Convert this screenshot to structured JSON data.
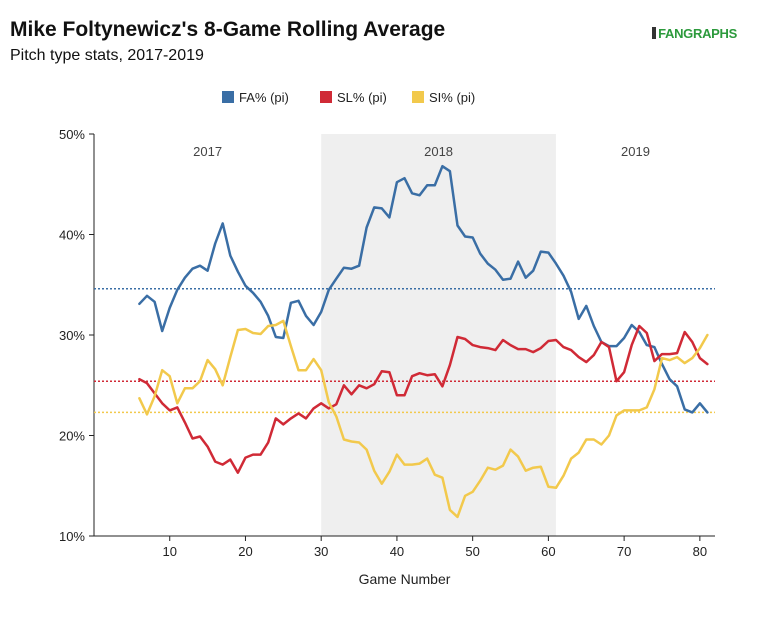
{
  "header": {
    "title": "Mike Foltynewicz's 8-Game Rolling Average",
    "subtitle": "Pitch type stats, 2017-2019",
    "logo_text": "FANGRAPHS"
  },
  "chart_data": {
    "type": "line",
    "title": "Mike Foltynewicz's 8-Game Rolling Average",
    "subtitle": "Pitch type stats, 2017-2019",
    "xlabel": "Game Number",
    "ylabel": "",
    "xlim": [
      0,
      82
    ],
    "ylim": [
      0.1,
      0.5
    ],
    "x_ticks": [
      10,
      20,
      30,
      40,
      50,
      60,
      70,
      80
    ],
    "y_ticks": [
      {
        "value": 0.1,
        "label": "10%"
      },
      {
        "value": 0.2,
        "label": "20%"
      },
      {
        "value": 0.3,
        "label": "30%"
      },
      {
        "value": 0.4,
        "label": "40%"
      },
      {
        "value": 0.5,
        "label": "50%"
      }
    ],
    "legend_position": "top-center",
    "grid": false,
    "seasons": [
      {
        "label": "2017",
        "start": 0,
        "end": 30,
        "shaded": false
      },
      {
        "label": "2018",
        "start": 30,
        "end": 61,
        "shaded": true
      },
      {
        "label": "2019",
        "start": 61,
        "end": 82,
        "shaded": false
      }
    ],
    "season_shade_color": "#efefef",
    "series": [
      {
        "name": "FA% (pi)",
        "color": "#3a6ea5",
        "average": 0.346,
        "x": [
          6,
          7,
          8,
          9,
          10,
          11,
          12,
          13,
          14,
          15,
          16,
          17,
          18,
          19,
          20,
          21,
          22,
          23,
          24,
          25,
          26,
          27,
          28,
          29,
          30,
          31,
          32,
          33,
          34,
          35,
          36,
          37,
          38,
          39,
          40,
          41,
          42,
          43,
          44,
          45,
          46,
          47,
          48,
          49,
          50,
          51,
          52,
          53,
          54,
          55,
          56,
          57,
          58,
          59,
          60,
          61,
          62,
          63,
          64,
          65,
          66,
          67,
          68,
          69,
          70,
          71,
          72,
          73,
          74,
          75,
          76,
          77,
          78,
          79,
          80,
          81
        ],
        "y": [
          0.331,
          0.339,
          0.333,
          0.304,
          0.327,
          0.345,
          0.357,
          0.366,
          0.369,
          0.364,
          0.391,
          0.411,
          0.379,
          0.363,
          0.349,
          0.342,
          0.333,
          0.319,
          0.298,
          0.297,
          0.332,
          0.334,
          0.319,
          0.31,
          0.323,
          0.345,
          0.356,
          0.367,
          0.366,
          0.369,
          0.407,
          0.427,
          0.426,
          0.417,
          0.452,
          0.456,
          0.441,
          0.439,
          0.449,
          0.449,
          0.468,
          0.463,
          0.409,
          0.398,
          0.397,
          0.381,
          0.371,
          0.365,
          0.355,
          0.356,
          0.373,
          0.357,
          0.364,
          0.383,
          0.382,
          0.371,
          0.359,
          0.343,
          0.316,
          0.329,
          0.309,
          0.293,
          0.289,
          0.289,
          0.297,
          0.31,
          0.303,
          0.29,
          0.288,
          0.271,
          0.256,
          0.249,
          0.226,
          0.223,
          0.232,
          0.223
        ]
      },
      {
        "name": "SL% (pi)",
        "color": "#d02a36",
        "average": 0.254,
        "x": [
          6,
          7,
          8,
          9,
          10,
          11,
          12,
          13,
          14,
          15,
          16,
          17,
          18,
          19,
          20,
          21,
          22,
          23,
          24,
          25,
          26,
          27,
          28,
          29,
          30,
          31,
          32,
          33,
          34,
          35,
          36,
          37,
          38,
          39,
          40,
          41,
          42,
          43,
          44,
          45,
          46,
          47,
          48,
          49,
          50,
          51,
          52,
          53,
          54,
          55,
          56,
          57,
          58,
          59,
          60,
          61,
          62,
          63,
          64,
          65,
          66,
          67,
          68,
          69,
          70,
          71,
          72,
          73,
          74,
          75,
          76,
          77,
          78,
          79,
          80,
          81
        ],
        "y": [
          0.256,
          0.252,
          0.242,
          0.232,
          0.225,
          0.228,
          0.213,
          0.197,
          0.199,
          0.189,
          0.174,
          0.171,
          0.176,
          0.163,
          0.178,
          0.181,
          0.181,
          0.193,
          0.217,
          0.211,
          0.217,
          0.222,
          0.217,
          0.227,
          0.232,
          0.227,
          0.231,
          0.25,
          0.241,
          0.25,
          0.247,
          0.251,
          0.264,
          0.263,
          0.24,
          0.24,
          0.259,
          0.262,
          0.26,
          0.261,
          0.249,
          0.27,
          0.298,
          0.296,
          0.29,
          0.288,
          0.287,
          0.285,
          0.295,
          0.29,
          0.286,
          0.286,
          0.283,
          0.287,
          0.294,
          0.295,
          0.288,
          0.285,
          0.278,
          0.273,
          0.28,
          0.293,
          0.288,
          0.254,
          0.263,
          0.29,
          0.309,
          0.302,
          0.274,
          0.281,
          0.281,
          0.282,
          0.303,
          0.293,
          0.277,
          0.271
        ]
      },
      {
        "name": "SI% (pi)",
        "color": "#f2c94c",
        "average": 0.223,
        "x": [
          6,
          7,
          8,
          9,
          10,
          11,
          12,
          13,
          14,
          15,
          16,
          17,
          18,
          19,
          20,
          21,
          22,
          23,
          24,
          25,
          26,
          27,
          28,
          29,
          30,
          31,
          32,
          33,
          34,
          35,
          36,
          37,
          38,
          39,
          40,
          41,
          42,
          43,
          44,
          45,
          46,
          47,
          48,
          49,
          50,
          51,
          52,
          53,
          54,
          55,
          56,
          57,
          58,
          59,
          60,
          61,
          62,
          63,
          64,
          65,
          66,
          67,
          68,
          69,
          70,
          71,
          72,
          73,
          74,
          75,
          76,
          77,
          78,
          79,
          80,
          81
        ],
        "y": [
          0.237,
          0.221,
          0.239,
          0.265,
          0.259,
          0.232,
          0.247,
          0.247,
          0.254,
          0.275,
          0.266,
          0.25,
          0.278,
          0.305,
          0.306,
          0.302,
          0.301,
          0.309,
          0.31,
          0.314,
          0.289,
          0.265,
          0.265,
          0.276,
          0.265,
          0.233,
          0.219,
          0.196,
          0.194,
          0.193,
          0.186,
          0.165,
          0.152,
          0.164,
          0.181,
          0.171,
          0.171,
          0.172,
          0.177,
          0.161,
          0.158,
          0.126,
          0.119,
          0.14,
          0.144,
          0.155,
          0.168,
          0.166,
          0.17,
          0.186,
          0.179,
          0.165,
          0.168,
          0.169,
          0.149,
          0.148,
          0.16,
          0.177,
          0.183,
          0.196,
          0.196,
          0.191,
          0.2,
          0.22,
          0.225,
          0.225,
          0.225,
          0.228,
          0.246,
          0.277,
          0.275,
          0.278,
          0.272,
          0.277,
          0.287,
          0.3
        ]
      }
    ]
  }
}
